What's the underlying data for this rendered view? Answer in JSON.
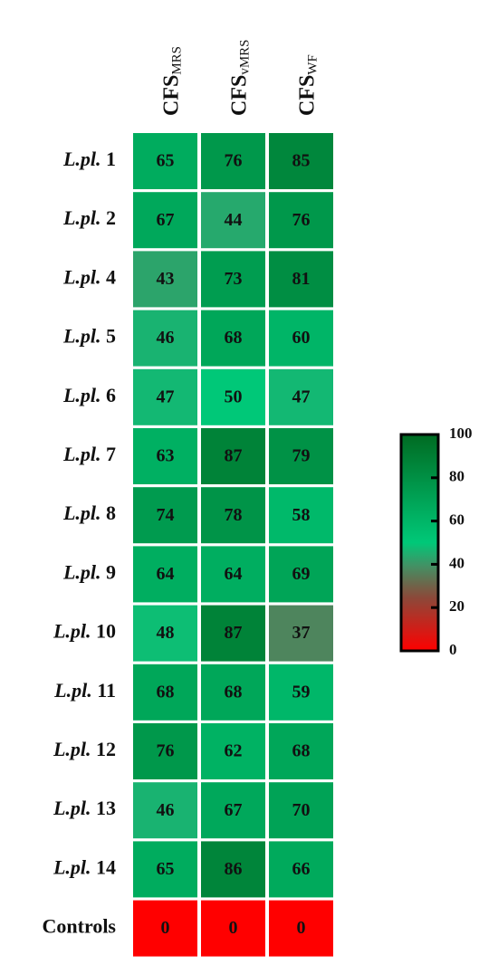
{
  "chart_data": {
    "type": "heatmap",
    "columns": [
      {
        "label": "CFS",
        "subscript": "MRS"
      },
      {
        "label": "CFS",
        "subscript": "vMRS"
      },
      {
        "label": "CFS",
        "subscript": "WF"
      }
    ],
    "rows": [
      "L.pl. 1",
      "L.pl. 2",
      "L.pl. 4",
      "L.pl. 5",
      "L.pl. 6",
      "L.pl. 7",
      "L.pl. 8",
      "L.pl. 9",
      "L.pl. 10",
      "L.pl. 11",
      "L.pl. 12",
      "L.pl. 13",
      "L.pl. 14",
      "Controls"
    ],
    "z": [
      [
        65,
        76,
        85
      ],
      [
        67,
        44,
        76
      ],
      [
        43,
        73,
        81
      ],
      [
        46,
        68,
        60
      ],
      [
        47,
        50,
        47
      ],
      [
        63,
        87,
        79
      ],
      [
        74,
        78,
        58
      ],
      [
        64,
        64,
        69
      ],
      [
        48,
        87,
        37
      ],
      [
        68,
        68,
        59
      ],
      [
        76,
        62,
        68
      ],
      [
        46,
        67,
        70
      ],
      [
        65,
        86,
        66
      ],
      [
        0,
        0,
        0
      ]
    ],
    "zlim": [
      0,
      100
    ],
    "zticks": [
      0,
      20,
      40,
      60,
      80,
      100
    ],
    "colorscale": [
      [
        0,
        "#ff0000"
      ],
      [
        25,
        "#8a4a3a"
      ],
      [
        40,
        "#3f9466"
      ],
      [
        50,
        "#00c878"
      ],
      [
        100,
        "#006b22"
      ]
    ]
  }
}
